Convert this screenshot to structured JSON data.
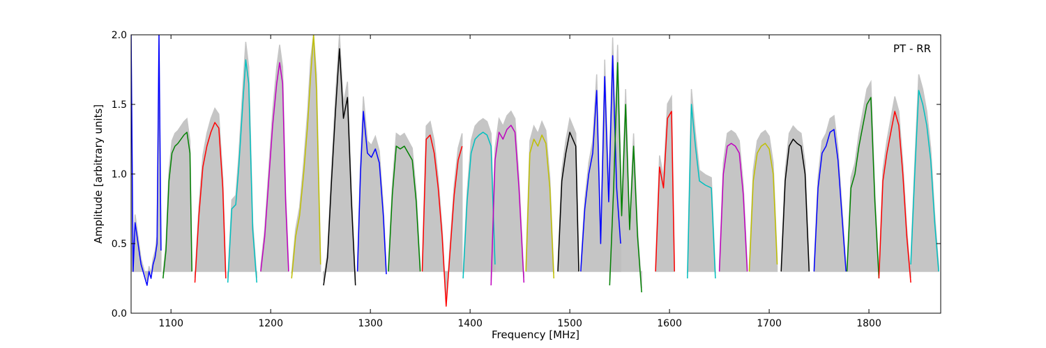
{
  "chart_data": {
    "type": "line",
    "title": "",
    "annotation": "PT - RR",
    "xlabel": "Frequency [MHz]",
    "ylabel": "Amplitude [arbitrary units]",
    "xlim": [
      1060,
      1872
    ],
    "ylim": [
      0,
      2.0
    ],
    "x_ticks": [
      1100,
      1200,
      1300,
      1400,
      1500,
      1600,
      1700,
      1800
    ],
    "x_tick_labels": [
      "1100",
      "1200",
      "1300",
      "1400",
      "1500",
      "1600",
      "1700",
      "1800"
    ],
    "y_ticks": [
      0.0,
      0.5,
      1.0,
      1.5,
      2.0
    ],
    "y_tick_labels": [
      "0.0",
      "0.5",
      "1.0",
      "1.5",
      "2.0"
    ],
    "grid": false,
    "background_color": "#bfbfbf",
    "series": [
      {
        "color": "#0000ff",
        "x": [
          1060,
          1062,
          1064,
          1066,
          1068,
          1070,
          1072,
          1074,
          1076,
          1078,
          1080,
          1082,
          1084,
          1086,
          1088,
          1090
        ],
        "y": [
          2.0,
          0.3,
          0.65,
          0.55,
          0.45,
          0.35,
          0.3,
          0.25,
          0.2,
          0.3,
          0.25,
          0.35,
          0.4,
          0.5,
          2.0,
          0.45
        ]
      },
      {
        "color": "#008000",
        "x": [
          1092,
          1095,
          1098,
          1101,
          1104,
          1107,
          1110,
          1113,
          1116,
          1119,
          1121
        ],
        "y": [
          0.25,
          0.45,
          0.95,
          1.15,
          1.2,
          1.22,
          1.25,
          1.28,
          1.3,
          1.15,
          0.3
        ]
      },
      {
        "color": "#ff0000",
        "x": [
          1124,
          1128,
          1132,
          1136,
          1140,
          1144,
          1148,
          1152,
          1155
        ],
        "y": [
          0.22,
          0.7,
          1.05,
          1.2,
          1.3,
          1.37,
          1.33,
          0.9,
          0.25
        ]
      },
      {
        "color": "#00bfbf",
        "x": [
          1157,
          1161,
          1165,
          1168,
          1172,
          1175,
          1178,
          1182,
          1186
        ],
        "y": [
          0.22,
          0.75,
          0.78,
          1.05,
          1.5,
          1.82,
          1.65,
          0.6,
          0.22
        ]
      },
      {
        "color": "#bf00bf",
        "x": [
          1190,
          1194,
          1198,
          1202,
          1206,
          1209,
          1212,
          1215,
          1218
        ],
        "y": [
          0.3,
          0.55,
          0.95,
          1.35,
          1.65,
          1.8,
          1.65,
          0.8,
          0.3
        ]
      },
      {
        "color": "#bfbf00",
        "x": [
          1221,
          1225,
          1229,
          1233,
          1237,
          1240,
          1243,
          1246,
          1250
        ],
        "y": [
          0.25,
          0.55,
          0.7,
          1.0,
          1.35,
          1.7,
          2.0,
          1.6,
          0.35
        ]
      },
      {
        "color": "#000000",
        "x": [
          1253,
          1257,
          1261,
          1265,
          1269,
          1273,
          1277,
          1281,
          1285
        ],
        "y": [
          0.2,
          0.4,
          0.95,
          1.45,
          1.9,
          1.4,
          1.55,
          0.8,
          0.2
        ]
      },
      {
        "color": "#0000ff",
        "x": [
          1287,
          1290,
          1293,
          1297,
          1301,
          1305,
          1309,
          1313,
          1316
        ],
        "y": [
          0.3,
          1.0,
          1.45,
          1.15,
          1.12,
          1.18,
          1.08,
          0.7,
          0.28
        ]
      },
      {
        "color": "#008000",
        "x": [
          1318,
          1322,
          1326,
          1330,
          1334,
          1338,
          1342,
          1346,
          1350
        ],
        "y": [
          0.3,
          0.85,
          1.2,
          1.18,
          1.2,
          1.15,
          1.1,
          0.8,
          0.3
        ]
      },
      {
        "color": "#ff0000",
        "x": [
          1352,
          1356,
          1360,
          1364,
          1368,
          1372,
          1376,
          1380,
          1384,
          1388,
          1392
        ],
        "y": [
          0.3,
          1.25,
          1.28,
          1.15,
          0.9,
          0.55,
          0.05,
          0.45,
          0.85,
          1.1,
          1.2
        ]
      },
      {
        "color": "#00bfbf",
        "x": [
          1393,
          1397,
          1401,
          1405,
          1409,
          1413,
          1417,
          1421,
          1425
        ],
        "y": [
          0.25,
          0.8,
          1.15,
          1.25,
          1.28,
          1.3,
          1.28,
          1.2,
          0.35
        ]
      },
      {
        "color": "#bf00bf",
        "x": [
          1421,
          1425,
          1429,
          1433,
          1437,
          1441,
          1445,
          1449,
          1454
        ],
        "y": [
          0.2,
          1.1,
          1.3,
          1.25,
          1.32,
          1.35,
          1.3,
          0.9,
          0.22
        ]
      },
      {
        "color": "#bfbf00",
        "x": [
          1456,
          1460,
          1464,
          1468,
          1472,
          1476,
          1480,
          1484
        ],
        "y": [
          0.3,
          1.15,
          1.25,
          1.2,
          1.28,
          1.22,
          0.9,
          0.25
        ]
      },
      {
        "color": "#000000",
        "x": [
          1488,
          1492,
          1496,
          1500,
          1503,
          1506,
          1509
        ],
        "y": [
          0.3,
          0.95,
          1.15,
          1.3,
          1.25,
          1.2,
          0.3
        ]
      },
      {
        "color": "#0000ff",
        "x": [
          1511,
          1515,
          1519,
          1523,
          1527,
          1531,
          1535,
          1539,
          1543,
          1547,
          1551
        ],
        "y": [
          0.3,
          0.75,
          1.0,
          1.15,
          1.6,
          0.5,
          1.7,
          0.8,
          1.85,
          0.9,
          0.5
        ]
      },
      {
        "color": "#008000",
        "x": [
          1540,
          1544,
          1548,
          1552,
          1556,
          1560,
          1564,
          1568,
          1572
        ],
        "y": [
          0.2,
          0.9,
          1.8,
          0.7,
          1.5,
          0.6,
          1.2,
          0.55,
          0.15
        ]
      },
      {
        "color": "#ff0000",
        "x": [
          1586,
          1590,
          1594,
          1598,
          1602,
          1605
        ],
        "y": [
          0.3,
          1.05,
          0.9,
          1.4,
          1.45,
          0.3
        ]
      },
      {
        "color": "#00bfbf",
        "x": [
          1618,
          1622,
          1626,
          1630,
          1636,
          1642,
          1646
        ],
        "y": [
          0.25,
          1.5,
          1.2,
          0.95,
          0.92,
          0.9,
          0.25
        ]
      },
      {
        "color": "#bf00bf",
        "x": [
          1650,
          1654,
          1658,
          1662,
          1666,
          1670,
          1674,
          1678
        ],
        "y": [
          0.3,
          1.0,
          1.2,
          1.22,
          1.2,
          1.15,
          0.85,
          0.3
        ]
      },
      {
        "color": "#bfbf00",
        "x": [
          1680,
          1684,
          1688,
          1692,
          1696,
          1700,
          1704,
          1708
        ],
        "y": [
          0.3,
          0.95,
          1.15,
          1.2,
          1.22,
          1.18,
          1.0,
          0.35
        ]
      },
      {
        "color": "#000000",
        "x": [
          1712,
          1716,
          1720,
          1724,
          1728,
          1732,
          1736,
          1740
        ],
        "y": [
          0.3,
          0.95,
          1.2,
          1.25,
          1.22,
          1.2,
          1.0,
          0.3
        ]
      },
      {
        "color": "#0000ff",
        "x": [
          1745,
          1749,
          1753,
          1757,
          1761,
          1765,
          1769,
          1773,
          1777
        ],
        "y": [
          0.3,
          0.9,
          1.15,
          1.2,
          1.3,
          1.32,
          1.1,
          0.7,
          0.3
        ]
      },
      {
        "color": "#008000",
        "x": [
          1778,
          1782,
          1786,
          1790,
          1794,
          1798,
          1802,
          1806,
          1810
        ],
        "y": [
          0.3,
          0.9,
          1.0,
          1.2,
          1.35,
          1.5,
          1.55,
          0.8,
          0.25
        ]
      },
      {
        "color": "#ff0000",
        "x": [
          1810,
          1814,
          1818,
          1822,
          1826,
          1830,
          1834,
          1838,
          1842
        ],
        "y": [
          0.25,
          0.95,
          1.15,
          1.3,
          1.45,
          1.35,
          1.0,
          0.55,
          0.22
        ]
      },
      {
        "color": "#00bfbf",
        "x": [
          1842,
          1846,
          1850,
          1854,
          1858,
          1862,
          1866,
          1870
        ],
        "y": [
          0.35,
          1.0,
          1.6,
          1.5,
          1.35,
          1.1,
          0.65,
          0.3
        ]
      }
    ]
  }
}
